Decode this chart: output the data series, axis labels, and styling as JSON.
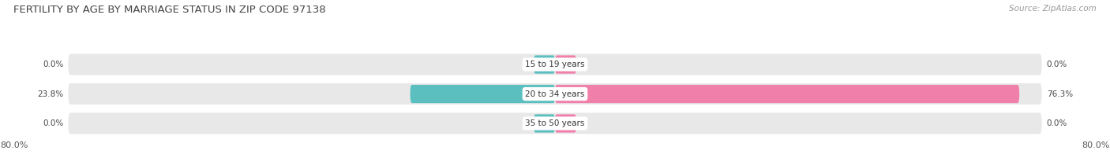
{
  "title": "FERTILITY BY AGE BY MARRIAGE STATUS IN ZIP CODE 97138",
  "source": "Source: ZipAtlas.com",
  "rows": [
    {
      "label": "15 to 19 years",
      "married": 0.0,
      "unmarried": 0.0
    },
    {
      "label": "20 to 34 years",
      "married": 23.8,
      "unmarried": 76.3
    },
    {
      "label": "35 to 50 years",
      "married": 0.0,
      "unmarried": 0.0
    }
  ],
  "x_left_label": "80.0%",
  "x_right_label": "80.0%",
  "max_val": 80.0,
  "married_color": "#5bbfc0",
  "unmarried_color": "#f07faa",
  "bar_bg_color": "#e8e8e8",
  "title_fontsize": 9.5,
  "source_fontsize": 7.5,
  "label_fontsize": 7.5,
  "tick_fontsize": 8,
  "legend_fontsize": 8.5
}
